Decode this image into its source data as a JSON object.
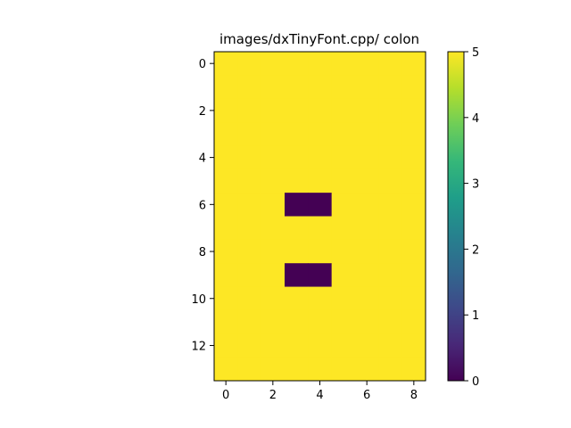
{
  "chart_data": {
    "type": "heatmap",
    "title": "images/dxTinyFont.cpp/ colon",
    "xlabel": "",
    "ylabel": "",
    "rows": 14,
    "cols": 9,
    "x_ticks": [
      0,
      2,
      4,
      6,
      8
    ],
    "y_ticks": [
      0,
      2,
      4,
      6,
      8,
      10,
      12
    ],
    "xlim": [
      -0.5,
      8.5
    ],
    "ylim": [
      13.5,
      -0.5
    ],
    "default_value": 5,
    "cells": [
      {
        "row": 6,
        "col": 3,
        "value": 0
      },
      {
        "row": 6,
        "col": 4,
        "value": 0
      },
      {
        "row": 9,
        "col": 3,
        "value": 0
      },
      {
        "row": 9,
        "col": 4,
        "value": 0
      }
    ],
    "colormap": "viridis",
    "colorbar": {
      "min": 0,
      "max": 5,
      "ticks": [
        0,
        1,
        2,
        3,
        4,
        5
      ],
      "colors": [
        "#440154",
        "#482878",
        "#3e4989",
        "#31688e",
        "#26828e",
        "#1f9e89",
        "#35b779",
        "#6ece58",
        "#b5de2b",
        "#fde725"
      ]
    },
    "grid": false
  }
}
